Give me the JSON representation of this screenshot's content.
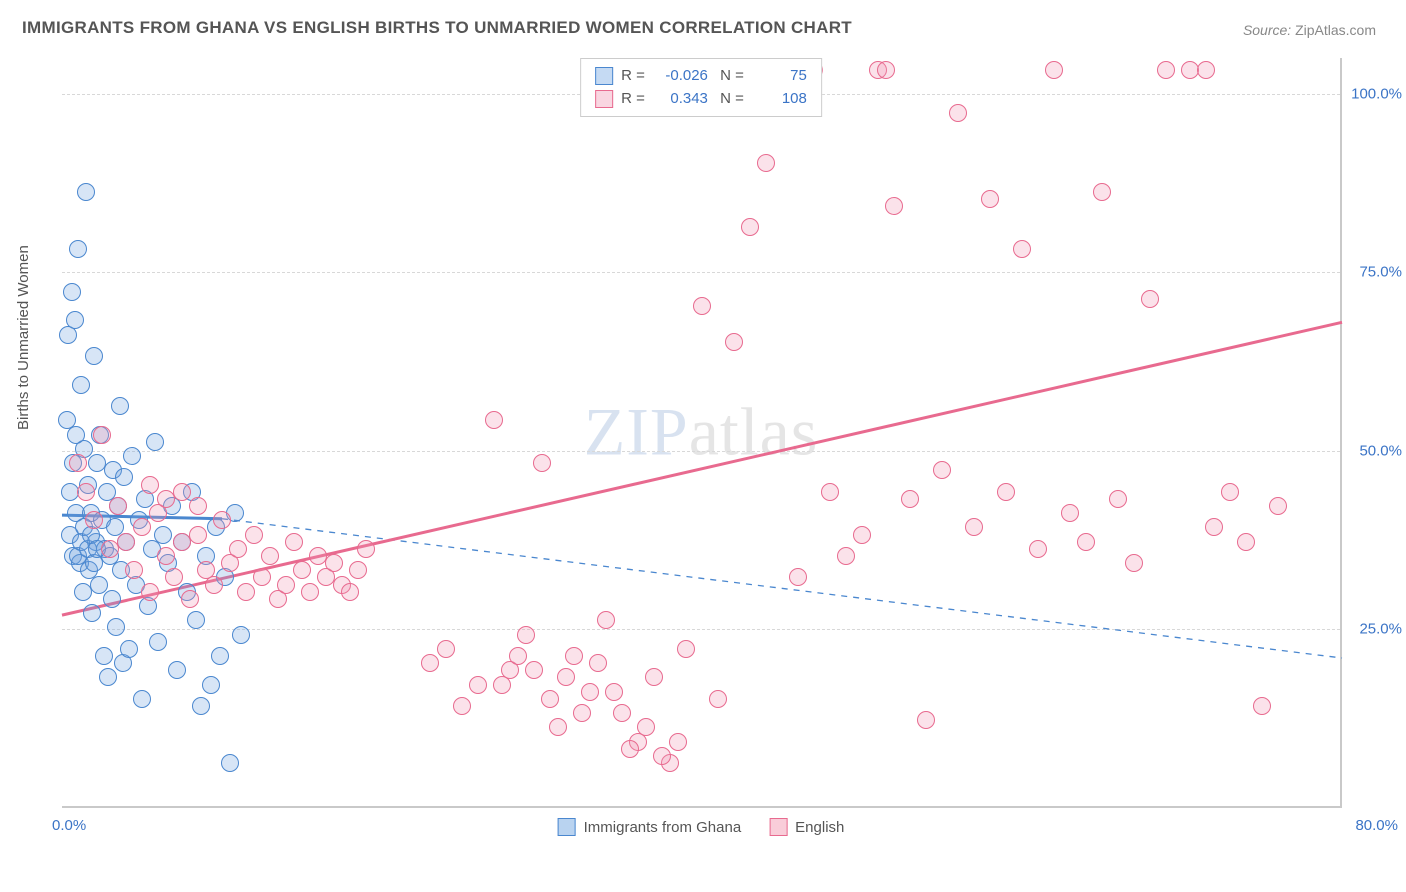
{
  "title": "IMMIGRANTS FROM GHANA VS ENGLISH BIRTHS TO UNMARRIED WOMEN CORRELATION CHART",
  "source_label": "Source:",
  "source_value": "ZipAtlas.com",
  "ylabel": "Births to Unmarried Women",
  "watermark_a": "ZIP",
  "watermark_b": "atlas",
  "chart": {
    "type": "scatter",
    "background_color": "#ffffff",
    "grid_color": "#d8d8d8",
    "axis_color": "#c9c9c9",
    "xlim": [
      0,
      80
    ],
    "ylim": [
      0,
      105
    ],
    "xtick_labels": {
      "min": "0.0%",
      "max": "80.0%"
    },
    "ytick_values": [
      25,
      50,
      75,
      100
    ],
    "ytick_labels": [
      "25.0%",
      "50.0%",
      "75.0%",
      "100.0%"
    ],
    "marker_radius": 9,
    "marker_stroke_width": 1.5,
    "marker_fill_opacity": 0.28,
    "label_fontsize": 15,
    "tick_color": "#3b74c6",
    "series": [
      {
        "name": "Immigrants from Ghana",
        "color": "#6fa3e0",
        "stroke": "#4a87cf",
        "R": "-0.026",
        "N": "75",
        "trend": {
          "type": "solid_then_dashed",
          "x1": 0,
          "y1": 41,
          "x_split": 10,
          "y_split": 40.5,
          "x2": 80,
          "y2": 21,
          "width_solid": 3,
          "width_dashed": 1.3,
          "dash": "6,6"
        },
        "points": [
          [
            0.3,
            54
          ],
          [
            0.4,
            66
          ],
          [
            0.5,
            38
          ],
          [
            0.6,
            72
          ],
          [
            0.7,
            35
          ],
          [
            0.8,
            68
          ],
          [
            0.9,
            41
          ],
          [
            1.0,
            78
          ],
          [
            1.1,
            34
          ],
          [
            1.2,
            59
          ],
          [
            1.3,
            30
          ],
          [
            1.4,
            50
          ],
          [
            1.5,
            86
          ],
          [
            1.6,
            45
          ],
          [
            1.7,
            33
          ],
          [
            1.8,
            41
          ],
          [
            1.9,
            27
          ],
          [
            2.0,
            63
          ],
          [
            2.1,
            37
          ],
          [
            2.2,
            48
          ],
          [
            2.3,
            31
          ],
          [
            2.4,
            52
          ],
          [
            2.5,
            40
          ],
          [
            2.6,
            21
          ],
          [
            2.7,
            36
          ],
          [
            2.8,
            44
          ],
          [
            2.9,
            18
          ],
          [
            3.0,
            35
          ],
          [
            3.1,
            29
          ],
          [
            3.2,
            47
          ],
          [
            3.3,
            39
          ],
          [
            3.4,
            25
          ],
          [
            3.5,
            42
          ],
          [
            3.6,
            56
          ],
          [
            3.7,
            33
          ],
          [
            3.8,
            20
          ],
          [
            3.9,
            46
          ],
          [
            4.0,
            37
          ],
          [
            4.2,
            22
          ],
          [
            4.4,
            49
          ],
          [
            4.6,
            31
          ],
          [
            4.8,
            40
          ],
          [
            5.0,
            15
          ],
          [
            5.2,
            43
          ],
          [
            5.4,
            28
          ],
          [
            5.6,
            36
          ],
          [
            5.8,
            51
          ],
          [
            6.0,
            23
          ],
          [
            6.3,
            38
          ],
          [
            6.6,
            34
          ],
          [
            6.9,
            42
          ],
          [
            7.2,
            19
          ],
          [
            7.5,
            37
          ],
          [
            7.8,
            30
          ],
          [
            8.1,
            44
          ],
          [
            8.4,
            26
          ],
          [
            8.7,
            14
          ],
          [
            9.0,
            35
          ],
          [
            9.3,
            17
          ],
          [
            9.6,
            39
          ],
          [
            9.9,
            21
          ],
          [
            10.2,
            32
          ],
          [
            10.5,
            6
          ],
          [
            10.8,
            41
          ],
          [
            11.2,
            24
          ],
          [
            1.0,
            35
          ],
          [
            1.2,
            37
          ],
          [
            1.4,
            39
          ],
          [
            1.6,
            36
          ],
          [
            1.8,
            38
          ],
          [
            2.0,
            34
          ],
          [
            2.2,
            36
          ],
          [
            0.5,
            44
          ],
          [
            0.7,
            48
          ],
          [
            0.9,
            52
          ]
        ]
      },
      {
        "name": "English",
        "color": "#f198b4",
        "stroke": "#e86a8f",
        "R": "0.343",
        "N": "108",
        "trend": {
          "type": "solid",
          "x1": 0,
          "y1": 27,
          "x2": 80,
          "y2": 68,
          "width": 3
        },
        "points": [
          [
            1.0,
            48
          ],
          [
            1.5,
            44
          ],
          [
            2.0,
            40
          ],
          [
            2.5,
            52
          ],
          [
            3.0,
            36
          ],
          [
            3.5,
            42
          ],
          [
            4.0,
            37
          ],
          [
            4.5,
            33
          ],
          [
            5.0,
            39
          ],
          [
            5.5,
            30
          ],
          [
            6.0,
            41
          ],
          [
            6.5,
            35
          ],
          [
            7.0,
            32
          ],
          [
            7.5,
            37
          ],
          [
            8.0,
            29
          ],
          [
            8.5,
            38
          ],
          [
            9.0,
            33
          ],
          [
            9.5,
            31
          ],
          [
            10.0,
            40
          ],
          [
            10.5,
            34
          ],
          [
            11.0,
            36
          ],
          [
            11.5,
            30
          ],
          [
            12.0,
            38
          ],
          [
            12.5,
            32
          ],
          [
            13.0,
            35
          ],
          [
            13.5,
            29
          ],
          [
            14.0,
            31
          ],
          [
            14.5,
            37
          ],
          [
            15.0,
            33
          ],
          [
            15.5,
            30
          ],
          [
            16.0,
            35
          ],
          [
            16.5,
            32
          ],
          [
            17.0,
            34
          ],
          [
            17.5,
            31
          ],
          [
            18.0,
            30
          ],
          [
            18.5,
            33
          ],
          [
            19.0,
            36
          ],
          [
            23.0,
            20
          ],
          [
            24.0,
            22
          ],
          [
            25.0,
            14
          ],
          [
            26.0,
            17
          ],
          [
            27.0,
            54
          ],
          [
            28.0,
            19
          ],
          [
            29.0,
            24
          ],
          [
            30.0,
            48
          ],
          [
            31.0,
            11
          ],
          [
            32.0,
            21
          ],
          [
            33.0,
            16
          ],
          [
            34.0,
            26
          ],
          [
            35.0,
            13
          ],
          [
            36.0,
            9
          ],
          [
            37.0,
            18
          ],
          [
            38.0,
            6
          ],
          [
            39.0,
            22
          ],
          [
            40.0,
            70
          ],
          [
            41.0,
            15
          ],
          [
            42.0,
            65
          ],
          [
            43.0,
            81
          ],
          [
            44.0,
            90
          ],
          [
            45.0,
            102
          ],
          [
            46.0,
            32
          ],
          [
            47.0,
            103
          ],
          [
            48.0,
            44
          ],
          [
            49.0,
            35
          ],
          [
            50.0,
            38
          ],
          [
            51.0,
            103
          ],
          [
            51.5,
            103
          ],
          [
            52.0,
            84
          ],
          [
            53.0,
            43
          ],
          [
            54.0,
            12
          ],
          [
            55.0,
            47
          ],
          [
            56.0,
            97
          ],
          [
            57.0,
            39
          ],
          [
            58.0,
            85
          ],
          [
            59.0,
            44
          ],
          [
            60.0,
            78
          ],
          [
            61.0,
            36
          ],
          [
            62.0,
            103
          ],
          [
            63.0,
            41
          ],
          [
            64.0,
            37
          ],
          [
            65.0,
            86
          ],
          [
            66.0,
            43
          ],
          [
            67.0,
            34
          ],
          [
            68.0,
            71
          ],
          [
            69.0,
            103
          ],
          [
            70.5,
            103
          ],
          [
            71.5,
            103
          ],
          [
            72.0,
            39
          ],
          [
            73.0,
            44
          ],
          [
            74.0,
            37
          ],
          [
            75.0,
            14
          ],
          [
            76.0,
            42
          ],
          [
            35.5,
            8
          ],
          [
            36.5,
            11
          ],
          [
            37.5,
            7
          ],
          [
            38.5,
            9
          ],
          [
            27.5,
            17
          ],
          [
            28.5,
            21
          ],
          [
            29.5,
            19
          ],
          [
            30.5,
            15
          ],
          [
            31.5,
            18
          ],
          [
            32.5,
            13
          ],
          [
            33.5,
            20
          ],
          [
            34.5,
            16
          ],
          [
            5.5,
            45
          ],
          [
            6.5,
            43
          ],
          [
            7.5,
            44
          ],
          [
            8.5,
            42
          ]
        ]
      }
    ]
  },
  "legend_bottom": [
    {
      "label": "Immigrants from Ghana",
      "fill": "#b9d3f0",
      "stroke": "#4a87cf"
    },
    {
      "label": "English",
      "fill": "#f9cdd9",
      "stroke": "#e86a8f"
    }
  ]
}
